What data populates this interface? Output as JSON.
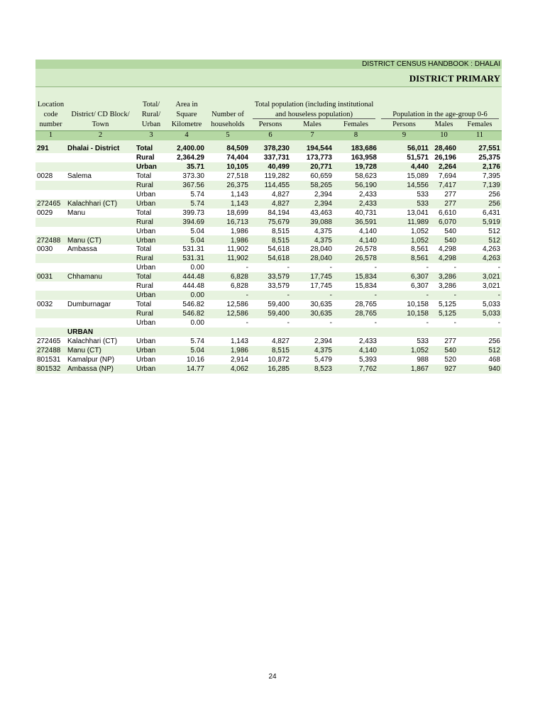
{
  "header": {
    "running_title": "DISTRICT CENSUS HANDBOOK : DHALAI",
    "title": "DISTRICT PRIMARY"
  },
  "table": {
    "columns": [
      [
        "Location",
        "code",
        "number"
      ],
      [
        "District/  CD Block/",
        "Town"
      ],
      [
        "Total/",
        "Rural/",
        "Urban"
      ],
      [
        "Area in",
        "Square",
        "Kilometre"
      ],
      [
        "Number of",
        "households"
      ]
    ],
    "groups": [
      {
        "title": [
          "Total population (including institutional",
          "and houseless population)"
        ],
        "sub": [
          "Persons",
          "Males",
          "Females"
        ]
      },
      {
        "title": [
          "Population in the  age-group 0-6"
        ],
        "sub": [
          "Persons",
          "Males",
          "Females"
        ]
      }
    ],
    "numbers": [
      "1",
      "2",
      "3",
      "4",
      "5",
      "6",
      "7",
      "8",
      "9",
      "10",
      "11"
    ],
    "rows": [
      {
        "code": "291",
        "name": "Dhalai - District",
        "type": "Total",
        "values": [
          "2,400.00",
          "84,509",
          "378,230",
          "194,544",
          "183,686",
          "56,011",
          "28,460",
          "27,551"
        ],
        "bold": true
      },
      {
        "type": "Rural",
        "values": [
          "2,364.29",
          "74,404",
          "337,731",
          "173,773",
          "163,958",
          "51,571",
          "26,196",
          "25,375"
        ],
        "bold": true
      },
      {
        "type": "Urban",
        "values": [
          "35.71",
          "10,105",
          "40,499",
          "20,771",
          "19,728",
          "4,440",
          "2,264",
          "2,176"
        ],
        "bold": true
      },
      {
        "code": "0028",
        "name": "Salema",
        "type": "Total",
        "values": [
          "373.30",
          "27,518",
          "119,282",
          "60,659",
          "58,623",
          "15,089",
          "7,694",
          "7,395"
        ]
      },
      {
        "type": "Rural",
        "values": [
          "367.56",
          "26,375",
          "114,455",
          "58,265",
          "56,190",
          "14,556",
          "7,417",
          "7,139"
        ]
      },
      {
        "type": "Urban",
        "values": [
          "5.74",
          "1,143",
          "4,827",
          "2,394",
          "2,433",
          "533",
          "277",
          "256"
        ]
      },
      {
        "code": "272465",
        "name": "Kalachhari (CT)",
        "type": "Urban",
        "values": [
          "5.74",
          "1,143",
          "4,827",
          "2,394",
          "2,433",
          "533",
          "277",
          "256"
        ]
      },
      {
        "code": "0029",
        "name": "Manu",
        "type": "Total",
        "values": [
          "399.73",
          "18,699",
          "84,194",
          "43,463",
          "40,731",
          "13,041",
          "6,610",
          "6,431"
        ]
      },
      {
        "type": "Rural",
        "values": [
          "394.69",
          "16,713",
          "75,679",
          "39,088",
          "36,591",
          "11,989",
          "6,070",
          "5,919"
        ]
      },
      {
        "type": "Urban",
        "values": [
          "5.04",
          "1,986",
          "8,515",
          "4,375",
          "4,140",
          "1,052",
          "540",
          "512"
        ]
      },
      {
        "code": "272488",
        "name": "Manu (CT)",
        "type": "Urban",
        "values": [
          "5.04",
          "1,986",
          "8,515",
          "4,375",
          "4,140",
          "1,052",
          "540",
          "512"
        ]
      },
      {
        "code": "0030",
        "name": "Ambassa",
        "type": "Total",
        "values": [
          "531.31",
          "11,902",
          "54,618",
          "28,040",
          "26,578",
          "8,561",
          "4,298",
          "4,263"
        ]
      },
      {
        "type": "Rural",
        "values": [
          "531.31",
          "11,902",
          "54,618",
          "28,040",
          "26,578",
          "8,561",
          "4,298",
          "4,263"
        ]
      },
      {
        "type": "Urban",
        "values": [
          "0.00",
          "-",
          "-",
          "-",
          "-",
          "-",
          "-",
          "-"
        ]
      },
      {
        "code": "0031",
        "name": "Chhamanu",
        "type": "Total",
        "values": [
          "444.48",
          "6,828",
          "33,579",
          "17,745",
          "15,834",
          "6,307",
          "3,286",
          "3,021"
        ]
      },
      {
        "type": "Rural",
        "values": [
          "444.48",
          "6,828",
          "33,579",
          "17,745",
          "15,834",
          "6,307",
          "3,286",
          "3,021"
        ]
      },
      {
        "type": "Urban",
        "values": [
          "0.00",
          "-",
          "-",
          "-",
          "-",
          "-",
          "-",
          "-"
        ]
      },
      {
        "code": "0032",
        "name": "Dumburnagar",
        "type": "Total",
        "values": [
          "546.82",
          "12,586",
          "59,400",
          "30,635",
          "28,765",
          "10,158",
          "5,125",
          "5,033"
        ]
      },
      {
        "type": "Rural",
        "values": [
          "546.82",
          "12,586",
          "59,400",
          "30,635",
          "28,765",
          "10,158",
          "5,125",
          "5,033"
        ]
      },
      {
        "type": "Urban",
        "values": [
          "0.00",
          "-",
          "-",
          "-",
          "-",
          "-",
          "-",
          "-"
        ]
      },
      {
        "name": "URBAN",
        "bold": true
      },
      {
        "code": "272465",
        "name": "Kalachhari (CT)",
        "type": "Urban",
        "values": [
          "5.74",
          "1,143",
          "4,827",
          "2,394",
          "2,433",
          "533",
          "277",
          "256"
        ]
      },
      {
        "code": "272488",
        "name": "Manu (CT)",
        "type": "Urban",
        "values": [
          "5.04",
          "1,986",
          "8,515",
          "4,375",
          "4,140",
          "1,052",
          "540",
          "512"
        ]
      },
      {
        "code": "801531",
        "name": "Kamalpur (NP)",
        "type": "Urban",
        "values": [
          "10.16",
          "2,914",
          "10,872",
          "5,479",
          "5,393",
          "988",
          "520",
          "468"
        ]
      },
      {
        "code": "801532",
        "name": "Ambassa (NP)",
        "type": "Urban",
        "values": [
          "14.77",
          "4,062",
          "16,285",
          "8,523",
          "7,762",
          "1,867",
          "927",
          "940"
        ]
      }
    ]
  },
  "footer": {
    "page": "24"
  }
}
